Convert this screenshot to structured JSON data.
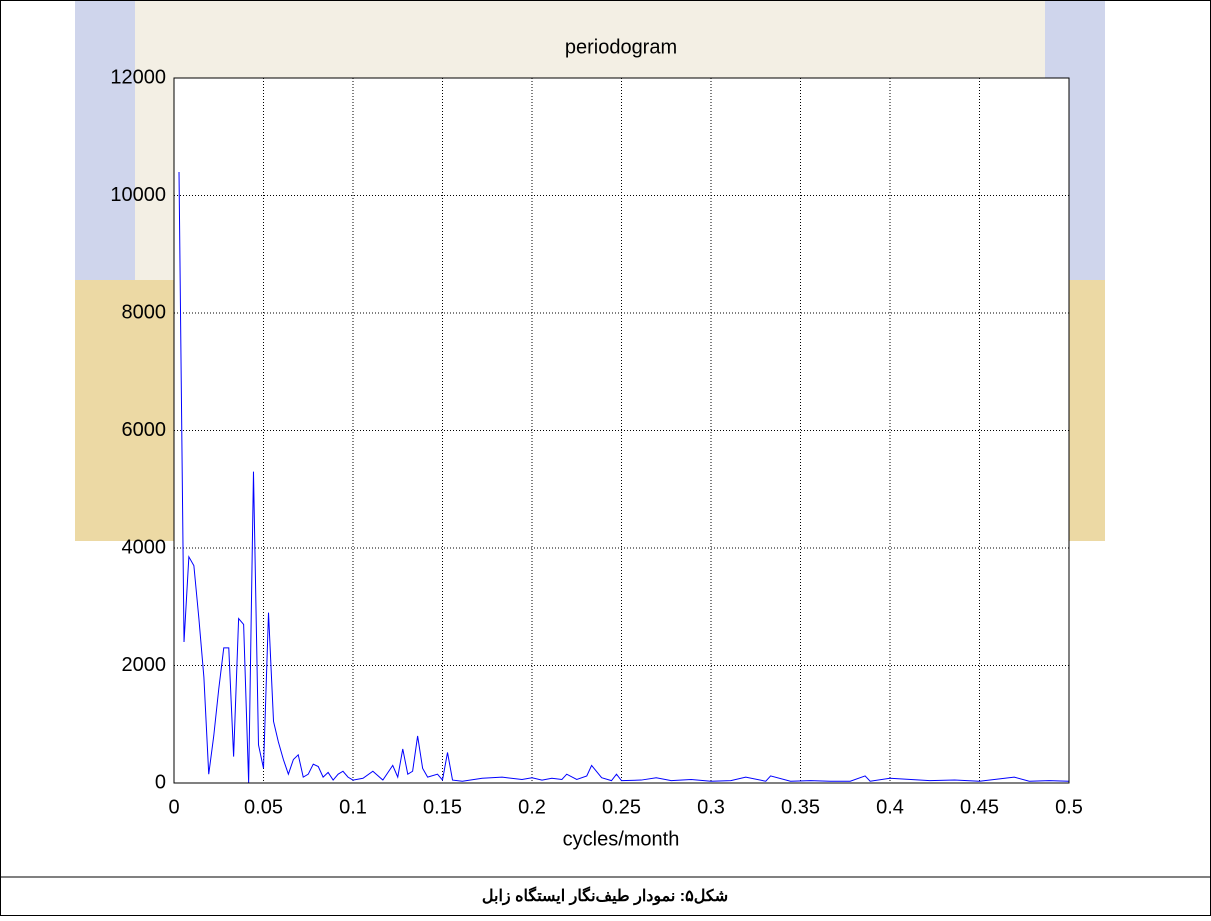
{
  "chart_data": {
    "type": "line",
    "title": "periodogram",
    "x_label": "cycles/month",
    "x": [
      0.0028,
      0.0056,
      0.0083,
      0.0111,
      0.0139,
      0.0167,
      0.0194,
      0.0222,
      0.025,
      0.0278,
      0.0306,
      0.0333,
      0.0361,
      0.0389,
      0.0417,
      0.0444,
      0.0472,
      0.05,
      0.0528,
      0.0556,
      0.0583,
      0.0611,
      0.0639,
      0.0667,
      0.0694,
      0.0722,
      0.075,
      0.0778,
      0.0806,
      0.0833,
      0.0861,
      0.0889,
      0.0917,
      0.0944,
      0.0972,
      0.1,
      0.1056,
      0.1111,
      0.1167,
      0.1222,
      0.125,
      0.1278,
      0.1306,
      0.1333,
      0.1361,
      0.1389,
      0.1417,
      0.1472,
      0.15,
      0.1528,
      0.1556,
      0.1611,
      0.1722,
      0.1833,
      0.1944,
      0.2,
      0.2056,
      0.2111,
      0.2167,
      0.2194,
      0.225,
      0.2306,
      0.2333,
      0.2389,
      0.2444,
      0.2472,
      0.25,
      0.2611,
      0.2694,
      0.2778,
      0.2889,
      0.3,
      0.3111,
      0.3194,
      0.3306,
      0.3333,
      0.3444,
      0.3556,
      0.3667,
      0.3778,
      0.3861,
      0.3889,
      0.4,
      0.4222,
      0.4361,
      0.45,
      0.4694,
      0.4778,
      0.4889,
      0.5
    ],
    "values": [
      10400,
      2400,
      3850,
      3700,
      2800,
      1800,
      150,
      800,
      1600,
      2300,
      2300,
      450,
      2800,
      2700,
      0,
      5300,
      650,
      250,
      2900,
      1050,
      700,
      400,
      150,
      400,
      480,
      100,
      150,
      320,
      280,
      100,
      180,
      50,
      150,
      200,
      100,
      50,
      80,
      200,
      50,
      300,
      100,
      580,
      150,
      200,
      800,
      250,
      100,
      150,
      50,
      520,
      50,
      30,
      80,
      100,
      60,
      90,
      50,
      80,
      60,
      150,
      60,
      120,
      300,
      90,
      40,
      150,
      40,
      50,
      90,
      40,
      60,
      30,
      40,
      100,
      30,
      120,
      30,
      40,
      30,
      30,
      120,
      30,
      80,
      40,
      50,
      30,
      100,
      30,
      40,
      30
    ],
    "color": "#0000ff",
    "xlim": [
      0,
      0.5
    ],
    "xticks": [
      0,
      0.05,
      0.1,
      0.15,
      0.2,
      0.25,
      0.3,
      0.35,
      0.4,
      0.45,
      0.5
    ],
    "ylim": [
      0,
      12000
    ],
    "yticks": [
      0,
      2000,
      4000,
      6000,
      8000,
      10000,
      12000
    ],
    "grid": true
  },
  "caption": "شکل۵: نمودار طیف‌نگار ایستگاه زابل"
}
